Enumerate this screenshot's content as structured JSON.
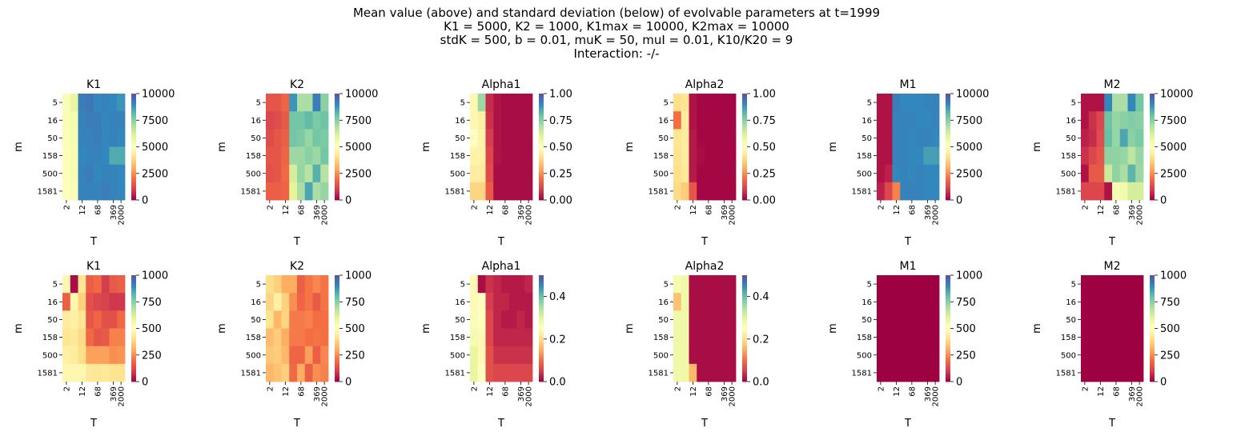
{
  "figure": {
    "title_lines": [
      "Mean value (above) and standard deviation (below) of evolvable parameters at t=1999",
      "K1 = 5000, K2 = 1000, K1max = 10000, K2max = 10000",
      "stdK = 500, b = 0.01, muK = 50, muI = 0.01, K10/K20 = 9",
      "Interaction: -/-"
    ],
    "colormap": "Spectral",
    "colormap_stops": [
      "#9e0142",
      "#d53e4f",
      "#f46d43",
      "#fdae61",
      "#fee08b",
      "#ffffbf",
      "#e6f598",
      "#abdda4",
      "#66c2a5",
      "#3288bd",
      "#5e4fa2"
    ]
  },
  "chart_data": [
    {
      "type": "heatmap",
      "title": "K1",
      "xlabel": "T",
      "ylabel": "m",
      "y_ticks": [
        "5",
        "16",
        "50",
        "158",
        "500",
        "1581"
      ],
      "x_ticks": [
        "2",
        "12",
        "68",
        "369",
        "2000"
      ],
      "vmin": 0,
      "vmax": 10000,
      "colorbar_ticks": [
        "0",
        "2500",
        "5000",
        "7500",
        "10000"
      ],
      "values": [
        [
          5200,
          5800,
          9200,
          9300,
          9000,
          9100,
          9000,
          8800
        ],
        [
          5200,
          5400,
          9100,
          9200,
          9200,
          9000,
          9100,
          9100
        ],
        [
          5200,
          5300,
          9100,
          9100,
          9200,
          9000,
          9100,
          9000
        ],
        [
          5100,
          5300,
          9000,
          9100,
          9100,
          9000,
          8400,
          8400
        ],
        [
          5100,
          5300,
          9100,
          9200,
          9000,
          9100,
          9100,
          9000
        ],
        [
          5100,
          5200,
          9100,
          9100,
          9100,
          9200,
          9100,
          9000
        ]
      ]
    },
    {
      "type": "heatmap",
      "title": "K2",
      "xlabel": "T",
      "ylabel": "m",
      "y_ticks": [
        "5",
        "16",
        "50",
        "158",
        "500",
        "1581"
      ],
      "x_ticks": [
        "2",
        "12",
        "68",
        "369",
        "2000"
      ],
      "vmin": 0,
      "vmax": 10000,
      "colorbar_ticks": [
        "0",
        "2500",
        "5000",
        "7500",
        "10000"
      ],
      "values": [
        [
          1500,
          1500,
          1800,
          8800,
          7000,
          7000,
          9200,
          7500
        ],
        [
          1200,
          1300,
          1600,
          7800,
          7800,
          8100,
          7700,
          7900
        ],
        [
          1300,
          1500,
          1700,
          7800,
          7700,
          7300,
          7800,
          7700
        ],
        [
          1500,
          1500,
          1800,
          7200,
          7200,
          7500,
          7200,
          7800
        ],
        [
          1400,
          1500,
          1900,
          6300,
          7300,
          6800,
          8300,
          6800
        ],
        [
          1700,
          1700,
          1800,
          6000,
          7000,
          8500,
          7000,
          7300
        ]
      ]
    },
    {
      "type": "heatmap",
      "title": "Alpha1",
      "xlabel": "T",
      "ylabel": "m",
      "y_ticks": [
        "5",
        "16",
        "50",
        "158",
        "500",
        "1581"
      ],
      "x_ticks": [
        "2",
        "12",
        "68",
        "369",
        "2000"
      ],
      "vmin": 0,
      "vmax": 1,
      "colorbar_ticks": [
        "0.00",
        "0.25",
        "0.50",
        "0.75",
        "1.00"
      ],
      "values": [
        [
          0.47,
          0.72,
          0.07,
          0.03,
          0.02,
          0.02,
          0.02,
          0.02
        ],
        [
          0.47,
          0.45,
          0.08,
          0.03,
          0.02,
          0.02,
          0.02,
          0.02
        ],
        [
          0.5,
          0.46,
          0.1,
          0.03,
          0.02,
          0.02,
          0.02,
          0.02
        ],
        [
          0.46,
          0.46,
          0.12,
          0.03,
          0.02,
          0.02,
          0.02,
          0.02
        ],
        [
          0.44,
          0.44,
          0.13,
          0.02,
          0.02,
          0.02,
          0.02,
          0.02
        ],
        [
          0.38,
          0.38,
          0.16,
          0.02,
          0.02,
          0.02,
          0.02,
          0.02
        ]
      ]
    },
    {
      "type": "heatmap",
      "title": "Alpha2",
      "xlabel": "T",
      "ylabel": "m",
      "y_ticks": [
        "5",
        "16",
        "50",
        "158",
        "500",
        "1581"
      ],
      "x_ticks": [
        "2",
        "12",
        "68",
        "369",
        "2000"
      ],
      "vmin": 0,
      "vmax": 1,
      "colorbar_ticks": [
        "0.00",
        "0.25",
        "0.50",
        "0.75",
        "1.00"
      ],
      "values": [
        [
          0.4,
          0.42,
          0.03,
          0.01,
          0.01,
          0.01,
          0.01,
          0.01
        ],
        [
          0.2,
          0.44,
          0.03,
          0.01,
          0.01,
          0.01,
          0.01,
          0.01
        ],
        [
          0.42,
          0.44,
          0.04,
          0.01,
          0.01,
          0.01,
          0.01,
          0.01
        ],
        [
          0.41,
          0.44,
          0.04,
          0.02,
          0.01,
          0.01,
          0.01,
          0.01
        ],
        [
          0.4,
          0.43,
          0.04,
          0.01,
          0.01,
          0.01,
          0.01,
          0.01
        ],
        [
          0.39,
          0.36,
          0.15,
          0.01,
          0.01,
          0.01,
          0.01,
          0.01
        ]
      ]
    },
    {
      "type": "heatmap",
      "title": "M1",
      "xlabel": "T",
      "ylabel": "m",
      "y_ticks": [
        "5",
        "16",
        "50",
        "158",
        "500",
        "1581"
      ],
      "x_ticks": [
        "2",
        "12",
        "68",
        "369",
        "2000"
      ],
      "vmin": 0,
      "vmax": 10000,
      "colorbar_ticks": [
        "0",
        "2500",
        "5000",
        "7500",
        "10000"
      ],
      "values": [
        [
          300,
          300,
          9200,
          9000,
          9000,
          9000,
          9100,
          9100
        ],
        [
          300,
          300,
          9100,
          9100,
          9100,
          9000,
          9000,
          9100
        ],
        [
          300,
          300,
          9100,
          9100,
          9000,
          9100,
          9100,
          9000
        ],
        [
          300,
          300,
          9100,
          9100,
          9000,
          9000,
          8600,
          8600
        ],
        [
          300,
          500,
          9000,
          9100,
          9000,
          9100,
          9000,
          9000
        ],
        [
          500,
          1200,
          2300,
          9100,
          9100,
          9100,
          9000,
          9000
        ]
      ]
    },
    {
      "type": "heatmap",
      "title": "M2",
      "xlabel": "T",
      "ylabel": "m",
      "y_ticks": [
        "5",
        "16",
        "50",
        "158",
        "500",
        "1581"
      ],
      "x_ticks": [
        "2",
        "12",
        "68",
        "369",
        "2000"
      ],
      "vmin": 0,
      "vmax": 10000,
      "colorbar_ticks": [
        "0",
        "2500",
        "5000",
        "7500",
        "10000"
      ],
      "values": [
        [
          300,
          300,
          300,
          9000,
          7000,
          7000,
          9000,
          7800
        ],
        [
          300,
          800,
          1200,
          7900,
          7300,
          7500,
          7600,
          7500
        ],
        [
          500,
          700,
          1300,
          8000,
          7300,
          8500,
          7500,
          7700
        ],
        [
          800,
          1200,
          1500,
          7400,
          7400,
          7300,
          6700,
          7300
        ],
        [
          300,
          1600,
          1600,
          6500,
          7400,
          7000,
          8200,
          7200
        ],
        [
          1200,
          1200,
          1200,
          300,
          5300,
          5500,
          6300,
          6300
        ]
      ]
    },
    {
      "type": "heatmap",
      "title": "K1",
      "xlabel": "T",
      "ylabel": "m",
      "y_ticks": [
        "5",
        "16",
        "50",
        "158",
        "500",
        "1581"
      ],
      "x_ticks": [
        "2",
        "12",
        "68",
        "369",
        "2000"
      ],
      "vmin": 0,
      "vmax": 1000,
      "colorbar_ticks": [
        "0",
        "250",
        "500",
        "750",
        "1000"
      ],
      "values": [
        [
          470,
          20,
          420,
          170,
          190,
          100,
          160,
          170
        ],
        [
          170,
          470,
          370,
          140,
          120,
          110,
          90,
          90
        ],
        [
          440,
          450,
          420,
          150,
          180,
          140,
          140,
          190
        ],
        [
          420,
          430,
          390,
          190,
          150,
          160,
          230,
          230
        ],
        [
          450,
          440,
          400,
          280,
          280,
          280,
          250,
          260
        ],
        [
          470,
          470,
          470,
          430,
          420,
          430,
          410,
          410
        ]
      ]
    },
    {
      "type": "heatmap",
      "title": "K2",
      "xlabel": "T",
      "ylabel": "m",
      "y_ticks": [
        "5",
        "16",
        "50",
        "158",
        "500",
        "1581"
      ],
      "x_ticks": [
        "2",
        "12",
        "68",
        "369",
        "2000"
      ],
      "vmin": 0,
      "vmax": 1000,
      "colorbar_ticks": [
        "0",
        "250",
        "500",
        "750",
        "1000"
      ],
      "values": [
        [
          400,
          370,
          300,
          300,
          170,
          210,
          240,
          210
        ],
        [
          380,
          450,
          370,
          250,
          180,
          210,
          160,
          210
        ],
        [
          410,
          320,
          380,
          220,
          220,
          230,
          200,
          200
        ],
        [
          330,
          360,
          300,
          220,
          220,
          200,
          210,
          200
        ],
        [
          350,
          360,
          320,
          180,
          180,
          280,
          170,
          240
        ],
        [
          320,
          340,
          370,
          190,
          300,
          170,
          250,
          230
        ]
      ]
    },
    {
      "type": "heatmap",
      "title": "Alpha1",
      "xlabel": "T",
      "ylabel": "m",
      "y_ticks": [
        "5",
        "16",
        "50",
        "158",
        "500",
        "1581"
      ],
      "x_ticks": [
        "2",
        "12",
        "68",
        "369",
        "2000"
      ],
      "vmin": 0,
      "vmax": 0.5,
      "colorbar_ticks": [
        "0.0",
        "0.2",
        "0.4"
      ],
      "values": [
        [
          0.24,
          0.01,
          0.04,
          0.03,
          0.02,
          0.02,
          0.02,
          0.03
        ],
        [
          0.24,
          0.25,
          0.05,
          0.03,
          0.03,
          0.02,
          0.02,
          0.02
        ],
        [
          0.26,
          0.25,
          0.06,
          0.03,
          0.02,
          0.02,
          0.03,
          0.02
        ],
        [
          0.27,
          0.24,
          0.06,
          0.03,
          0.03,
          0.03,
          0.03,
          0.03
        ],
        [
          0.29,
          0.24,
          0.07,
          0.04,
          0.04,
          0.04,
          0.04,
          0.04
        ],
        [
          0.29,
          0.25,
          0.07,
          0.06,
          0.06,
          0.06,
          0.06,
          0.06
        ]
      ]
    },
    {
      "type": "heatmap",
      "title": "Alpha2",
      "xlabel": "T",
      "ylabel": "m",
      "y_ticks": [
        "5",
        "16",
        "50",
        "158",
        "500",
        "1581"
      ],
      "x_ticks": [
        "2",
        "12",
        "68",
        "369",
        "2000"
      ],
      "vmin": 0,
      "vmax": 0.5,
      "colorbar_ticks": [
        "0.0",
        "0.2",
        "0.4"
      ],
      "values": [
        [
          0.27,
          0.28,
          0.01,
          0.01,
          0.01,
          0.01,
          0.01,
          0.01
        ],
        [
          0.17,
          0.28,
          0.01,
          0.01,
          0.01,
          0.01,
          0.01,
          0.01
        ],
        [
          0.28,
          0.28,
          0.01,
          0.01,
          0.01,
          0.01,
          0.01,
          0.01
        ],
        [
          0.28,
          0.28,
          0.01,
          0.01,
          0.01,
          0.01,
          0.01,
          0.01
        ],
        [
          0.28,
          0.28,
          0.01,
          0.01,
          0.01,
          0.01,
          0.01,
          0.01
        ],
        [
          0.28,
          0.28,
          0.16,
          0.01,
          0.01,
          0.01,
          0.01,
          0.01
        ]
      ]
    },
    {
      "type": "heatmap",
      "title": "M1",
      "xlabel": "T",
      "ylabel": "m",
      "y_ticks": [
        "5",
        "16",
        "50",
        "158",
        "500",
        "1581"
      ],
      "x_ticks": [
        "2",
        "12",
        "68",
        "369",
        "2000"
      ],
      "vmin": 0,
      "vmax": 1000,
      "colorbar_ticks": [
        "0",
        "250",
        "500",
        "750",
        "1000"
      ],
      "values": [
        [
          0,
          0,
          0,
          0,
          0,
          0,
          0,
          0
        ],
        [
          0,
          0,
          0,
          0,
          0,
          0,
          0,
          0
        ],
        [
          0,
          0,
          0,
          0,
          0,
          0,
          0,
          0
        ],
        [
          0,
          0,
          0,
          0,
          0,
          0,
          0,
          0
        ],
        [
          0,
          0,
          0,
          0,
          0,
          0,
          0,
          0
        ],
        [
          0,
          0,
          0,
          0,
          0,
          0,
          0,
          0
        ]
      ]
    },
    {
      "type": "heatmap",
      "title": "M2",
      "xlabel": "T",
      "ylabel": "m",
      "y_ticks": [
        "5",
        "16",
        "50",
        "158",
        "500",
        "1581"
      ],
      "x_ticks": [
        "2",
        "12",
        "68",
        "369",
        "2000"
      ],
      "vmin": 0,
      "vmax": 1000,
      "colorbar_ticks": [
        "0",
        "250",
        "500",
        "750",
        "1000"
      ],
      "values": [
        [
          0,
          0,
          0,
          0,
          0,
          0,
          0,
          0
        ],
        [
          0,
          0,
          0,
          0,
          0,
          0,
          0,
          0
        ],
        [
          0,
          0,
          0,
          0,
          0,
          0,
          0,
          0
        ],
        [
          0,
          0,
          0,
          0,
          0,
          0,
          0,
          0
        ],
        [
          0,
          0,
          0,
          0,
          0,
          0,
          0,
          0
        ],
        [
          0,
          0,
          0,
          0,
          0,
          0,
          0,
          0
        ]
      ]
    }
  ]
}
